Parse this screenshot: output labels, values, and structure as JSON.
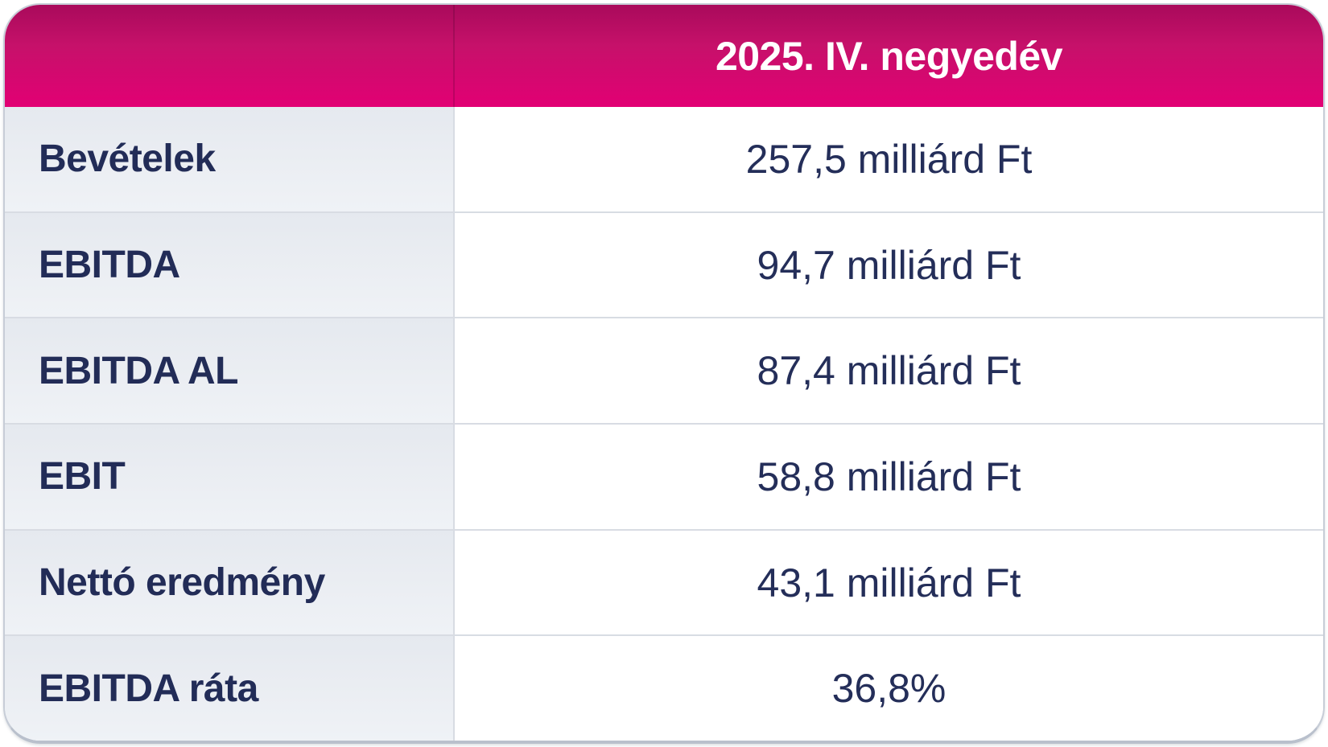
{
  "table": {
    "header": {
      "label": "",
      "value": "2025. IV. negyedév"
    },
    "rows": [
      {
        "label": "Bevételek",
        "value": "257,5 milliárd Ft"
      },
      {
        "label": "EBITDA",
        "value": "94,7 milliárd Ft"
      },
      {
        "label": "EBITDA AL",
        "value": "87,4 milliárd Ft"
      },
      {
        "label": "EBIT",
        "value": "58,8 milliárd Ft"
      },
      {
        "label": "Nettó eredmény",
        "value": "43,1 milliárd Ft"
      },
      {
        "label": "EBITDA ráta",
        "value": "36,8%"
      }
    ]
  },
  "chart_data": {
    "type": "table",
    "title": "2025. IV. negyedév",
    "columns": [
      "",
      "2025. IV. negyedév"
    ],
    "rows": [
      [
        "Bevételek",
        "257,5 milliárd Ft"
      ],
      [
        "EBITDA",
        "94,7 milliárd Ft"
      ],
      [
        "EBITDA AL",
        "87,4 milliárd Ft"
      ],
      [
        "EBIT",
        "58,8 milliárd Ft"
      ],
      [
        "Nettó eredmény",
        "43,1 milliárd Ft"
      ],
      [
        "EBITDA ráta",
        "36,8%"
      ]
    ],
    "metrics": [
      {
        "label": "Bevételek",
        "value": 257.5,
        "unit": "milliárd Ft"
      },
      {
        "label": "EBITDA",
        "value": 94.7,
        "unit": "milliárd Ft"
      },
      {
        "label": "EBITDA AL",
        "value": 87.4,
        "unit": "milliárd Ft"
      },
      {
        "label": "EBIT",
        "value": 58.8,
        "unit": "milliárd Ft"
      },
      {
        "label": "Nettó eredmény",
        "value": 43.1,
        "unit": "milliárd Ft"
      },
      {
        "label": "EBITDA ráta",
        "value": 36.8,
        "unit": "%"
      }
    ]
  },
  "colors": {
    "brand_magenta": "#e20074",
    "brand_magenta_dark": "#a90a5b",
    "text_navy": "#222c57",
    "label_cell_bg": "#eaedf2",
    "value_cell_bg": "#ffffff",
    "row_divider": "#d8dce3",
    "card_border": "#c7cdd7"
  }
}
